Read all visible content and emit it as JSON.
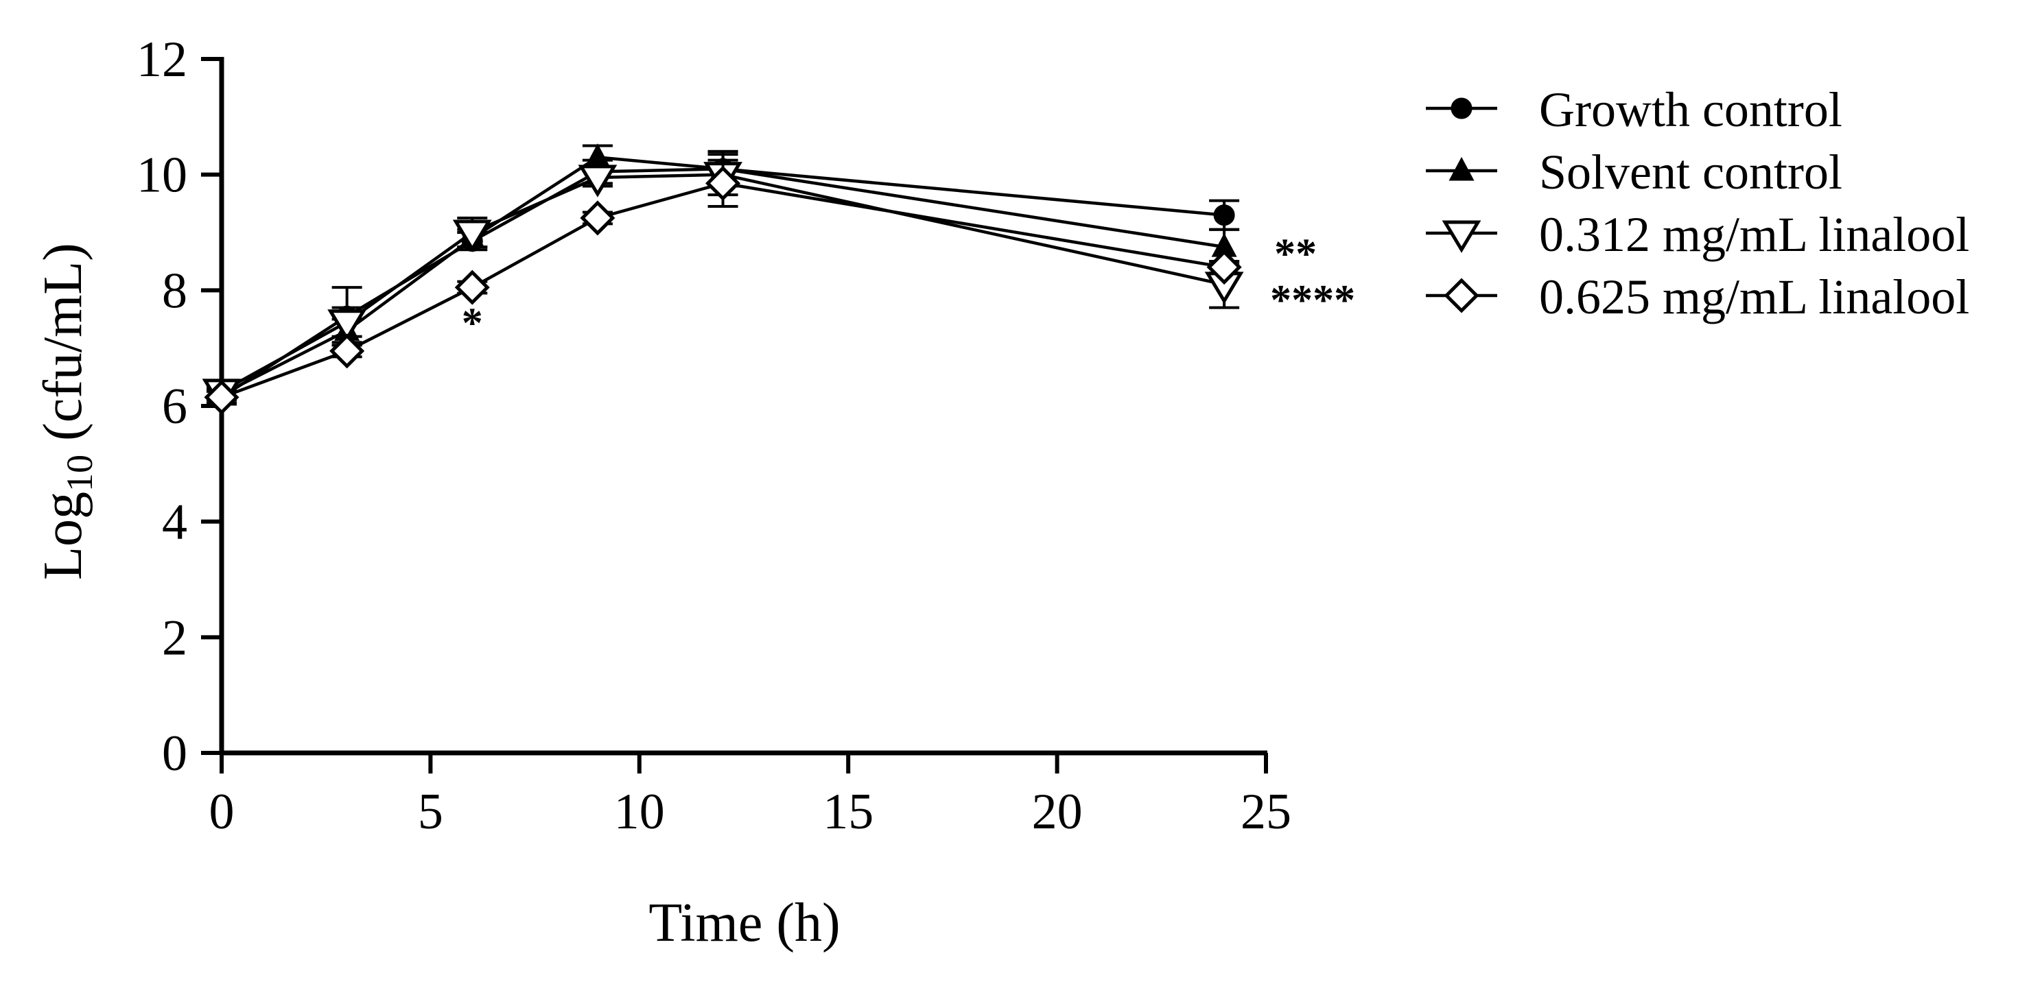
{
  "chart_data": {
    "type": "line",
    "title": "",
    "xlabel": "Time (h)",
    "ylabel_main": "Log",
    "ylabel_sub": "10",
    "ylabel_rest": " (cfu/mL)",
    "xlim": [
      0,
      25
    ],
    "ylim": [
      0,
      12
    ],
    "xticks": [
      0,
      5,
      10,
      15,
      20,
      25
    ],
    "yticks": [
      0,
      2,
      4,
      6,
      8,
      10,
      12
    ],
    "grid": false,
    "legend_position": "right",
    "x": [
      0,
      3,
      6,
      9,
      12,
      24
    ],
    "series": [
      {
        "name": "Growth control",
        "marker": "circle-filled",
        "values": [
          6.15,
          7.55,
          8.85,
          10.05,
          10.1,
          9.3
        ],
        "errors": [
          0.12,
          0.5,
          0.15,
          0.2,
          0.3,
          0.25
        ]
      },
      {
        "name": "Solvent control",
        "marker": "triangle-up-filled",
        "values": [
          6.2,
          7.3,
          8.9,
          10.3,
          10.1,
          8.75
        ],
        "errors": [
          0.1,
          0.2,
          0.15,
          0.2,
          0.3,
          0.3
        ]
      },
      {
        "name": "0.312 mg/mL linalool",
        "marker": "triangle-down-open",
        "values": [
          6.25,
          7.45,
          9.0,
          9.95,
          10.0,
          8.1
        ],
        "errors": [
          0.1,
          0.25,
          0.25,
          0.15,
          0.35,
          0.4
        ]
      },
      {
        "name": "0.625 mg/mL linalool",
        "marker": "diamond-open",
        "values": [
          6.15,
          6.95,
          8.05,
          9.25,
          9.85,
          8.4
        ],
        "errors": [
          0.1,
          0.1,
          0.1,
          0.1,
          0.4,
          0.1
        ]
      }
    ],
    "annotations": [
      {
        "text": "*",
        "x": 6,
        "y": 7.5
      },
      {
        "text": "**",
        "x": 25.2,
        "y": 8.7
      },
      {
        "text": "****",
        "x": 25.1,
        "y": 7.9
      }
    ]
  }
}
